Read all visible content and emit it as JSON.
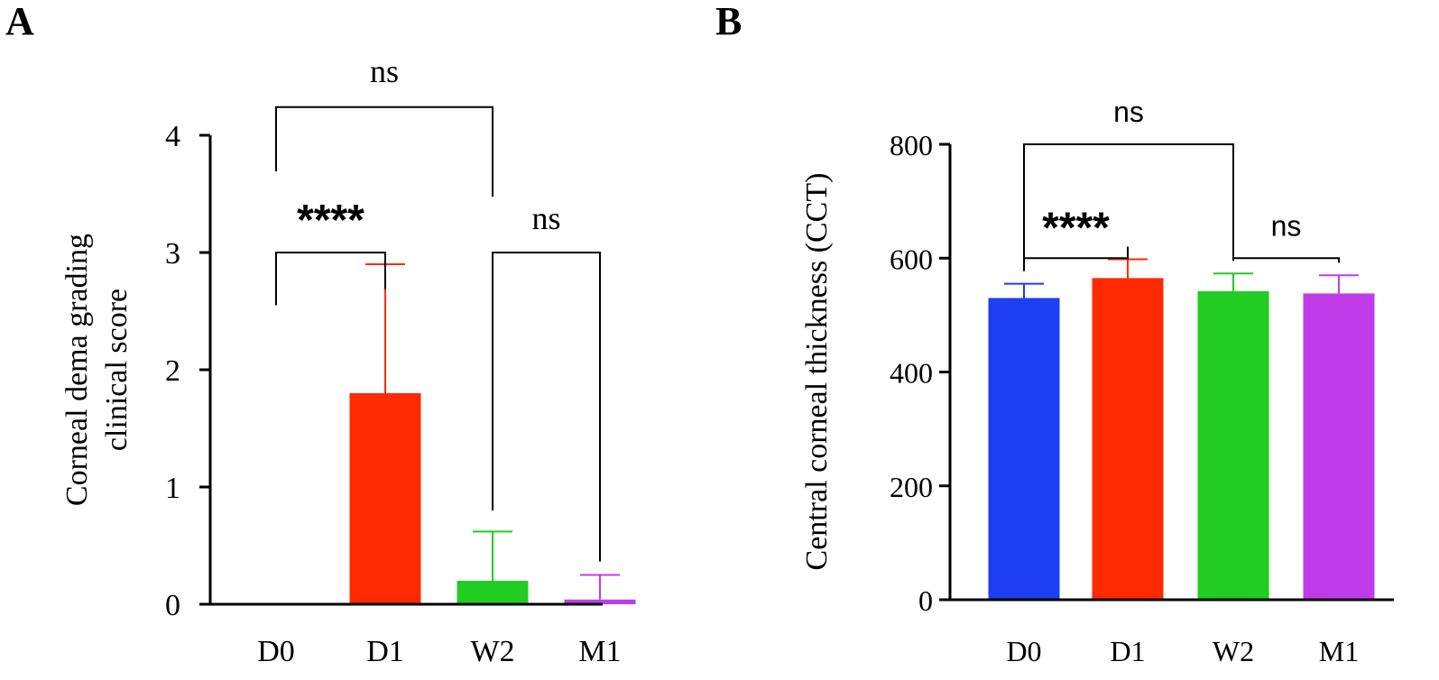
{
  "chart_data": [
    {
      "panel": "A",
      "type": "bar",
      "title": "",
      "xlabel": "",
      "ylabel": "Corneal dema grading clinical score",
      "ylabel_lines": [
        "Corneal dema grading",
        "clinical score"
      ],
      "categories": [
        "D0",
        "D1",
        "W2",
        "M1"
      ],
      "values": [
        0,
        1.8,
        0.2,
        0.04
      ],
      "error_upper": [
        0,
        2.9,
        0.62,
        0.25
      ],
      "colors": [
        "#1f3ff2",
        "#ff2a00",
        "#22cc22",
        "#c03ce8"
      ],
      "ylim": [
        0,
        4
      ],
      "yticks": [
        0,
        1,
        2,
        3,
        4
      ],
      "yticks_labels": [
        "0",
        "1",
        "2",
        "3",
        "4"
      ],
      "grid": false,
      "significance": [
        {
          "from": 0,
          "to": 2,
          "label": "ns",
          "bracket_y": 4.24
        },
        {
          "from": 0,
          "to": 1,
          "label": "****",
          "bracket_y": 3.0
        },
        {
          "from": 2,
          "to": 3,
          "label": "ns",
          "bracket_y": 3.0
        }
      ]
    },
    {
      "panel": "B",
      "type": "bar",
      "title": "",
      "xlabel": "",
      "ylabel": "Central corneal thickness (CCT)",
      "categories": [
        "D0",
        "D1",
        "W2",
        "M1"
      ],
      "values": [
        530,
        565,
        542,
        538
      ],
      "error_upper": [
        555,
        598,
        573,
        570
      ],
      "colors": [
        "#1f3ff2",
        "#ff2a00",
        "#22cc22",
        "#c03ce8"
      ],
      "ylim": [
        0,
        800
      ],
      "yticks": [
        0,
        200,
        400,
        600,
        800
      ],
      "yticks_labels": [
        "0",
        "200",
        "400",
        "600",
        "800"
      ],
      "grid": false,
      "significance": [
        {
          "from": 0,
          "to": 2,
          "label": "ns",
          "bracket_y": 800
        },
        {
          "from": 0,
          "to": 1,
          "label": "****",
          "bracket_y": 600
        },
        {
          "from": 2,
          "to": 3,
          "label": "ns",
          "bracket_y": 600
        }
      ]
    }
  ]
}
